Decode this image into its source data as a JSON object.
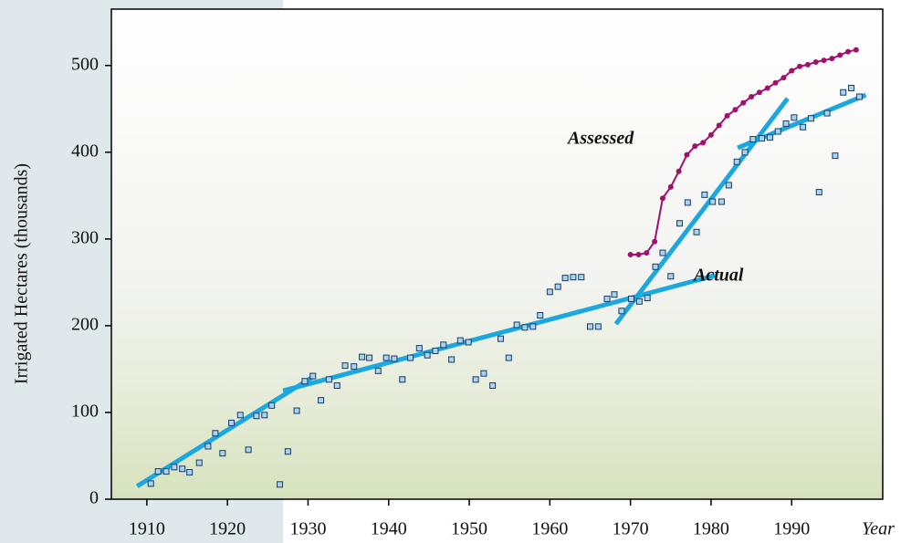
{
  "chart_data": {
    "type": "scatter",
    "y_label": "Irrigated Hectares (thousands)",
    "x_label": "Year",
    "xlim": [
      1905.6,
      2001.3
    ],
    "ylim": [
      0,
      565
    ],
    "xticks": [
      1910,
      1920,
      1930,
      1940,
      1950,
      1960,
      1970,
      1980,
      1990
    ],
    "yticks": [
      0,
      100,
      200,
      300,
      400,
      500
    ],
    "series": [
      {
        "name": "Actual",
        "color": "#1ba7e0",
        "marker_color": "#a8d4ec",
        "marker_edge": "#1a3a6a",
        "x": [
          1910.5,
          1911.4,
          1912.4,
          1913.4,
          1914.4,
          1915.3,
          1916.5,
          1917.6,
          1918.5,
          1919.4,
          1920.5,
          1921.6,
          1922.6,
          1923.6,
          1924.6,
          1925.5,
          1926.5,
          1927.5,
          1928.6,
          1929.6,
          1930.6,
          1931.6,
          1932.6,
          1933.6,
          1934.6,
          1935.7,
          1936.7,
          1937.6,
          1938.7,
          1939.7,
          1940.7,
          1941.7,
          1942.7,
          1943.8,
          1944.8,
          1945.8,
          1946.8,
          1947.8,
          1948.9,
          1949.9,
          1950.8,
          1951.8,
          1952.9,
          1953.9,
          1954.9,
          1955.9,
          1956.9,
          1957.9,
          1958.8,
          1960.0,
          1961.0,
          1961.9,
          1962.9,
          1963.9,
          1965.0,
          1966.0,
          1967.1,
          1968.0,
          1968.9,
          1970.1,
          1971.1,
          1972.1,
          1973.1,
          1974.0,
          1975.0,
          1976.1,
          1977.1,
          1978.2,
          1979.2,
          1980.2,
          1981.3,
          1982.2,
          1983.2,
          1984.2,
          1985.2,
          1986.3,
          1987.3,
          1988.3,
          1989.3,
          1990.3,
          1991.4,
          1992.4,
          1993.4,
          1994.4,
          1995.4,
          1996.4,
          1997.4,
          1998.4
        ],
        "values": [
          18,
          32,
          32,
          37,
          35,
          31,
          42,
          61,
          76,
          53,
          88,
          97,
          57,
          96,
          97,
          108,
          17,
          55,
          102,
          136,
          142,
          114,
          138,
          131,
          154,
          153,
          164,
          163,
          148,
          163,
          162,
          138,
          163,
          174,
          166,
          171,
          178,
          161,
          183,
          181,
          138,
          145,
          131,
          185,
          163,
          201,
          198,
          199,
          212,
          239,
          245,
          255,
          256,
          256,
          199,
          199,
          231,
          236,
          217,
          231,
          228,
          232,
          268,
          284,
          257,
          318,
          342,
          308,
          351,
          343,
          343,
          362,
          389,
          400,
          415,
          416,
          417,
          424,
          433,
          440,
          429,
          439,
          354,
          445,
          396,
          469,
          474,
          464
        ]
      },
      {
        "name": "Assessed",
        "color": "#a0106e",
        "x": [
          1970,
          1971,
          1972,
          1973,
          1974,
          1975,
          1976,
          1977,
          1978,
          1979,
          1980,
          1981,
          1982,
          1983,
          1984,
          1985,
          1986,
          1987,
          1988,
          1989,
          1990,
          1991,
          1992,
          1993,
          1994,
          1995,
          1996,
          1997,
          1998
        ],
        "values": [
          282,
          282,
          284,
          297,
          347,
          360,
          378,
          397,
          407,
          411,
          420,
          431,
          442,
          449,
          457,
          464,
          469,
          474,
          480,
          486,
          494,
          499,
          501,
          504,
          506,
          508,
          512,
          516,
          518
        ]
      }
    ],
    "trend_lines": {
      "color": "#1ba7e0",
      "lines": [
        {
          "x": [
            1908.8,
            1930.6
          ],
          "values": [
            15,
            141
          ]
        },
        {
          "x": [
            1926.9,
            1980.5
          ],
          "values": [
            125,
            258
          ]
        },
        {
          "x": [
            1968.2,
            1989.5
          ],
          "values": [
            202,
            462
          ]
        },
        {
          "x": [
            1983.3,
            1999.2
          ],
          "values": [
            405,
            466
          ]
        }
      ]
    }
  }
}
